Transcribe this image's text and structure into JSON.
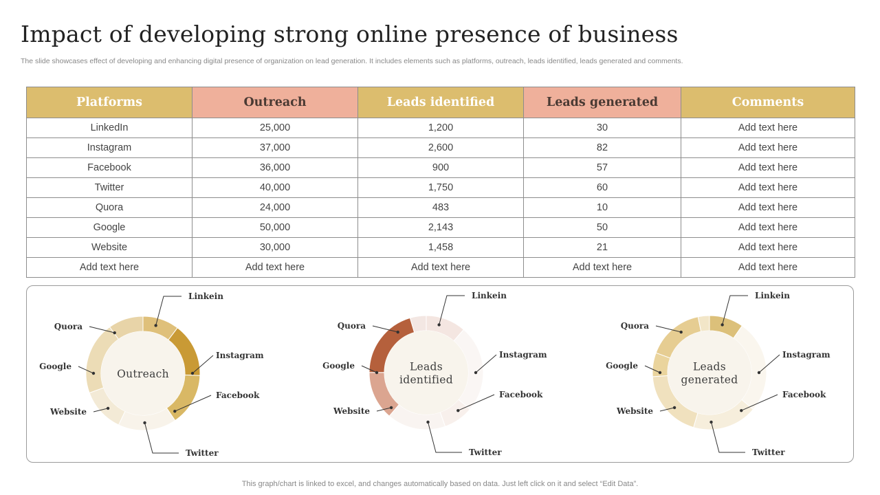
{
  "header": {
    "title": "Impact of developing strong online presence of business",
    "subtitle": "The slide showcases effect of developing and enhancing digital presence of organization on lead generation. It includes elements such as platforms, outreach, leads identified, leads generated and comments."
  },
  "table": {
    "columns": [
      "Platforms",
      "Outreach",
      "Leads identified",
      "Leads generated",
      "Comments"
    ],
    "rows": [
      [
        "LinkedIn",
        "25,000",
        "1,200",
        "30",
        "Add text here"
      ],
      [
        "Instagram",
        "37,000",
        "2,600",
        "82",
        "Add text here"
      ],
      [
        "Facebook",
        "36,000",
        "900",
        "57",
        "Add text here"
      ],
      [
        "Twitter",
        "40,000",
        "1,750",
        "60",
        "Add text here"
      ],
      [
        "Quora",
        "24,000",
        "483",
        "10",
        "Add text here"
      ],
      [
        "Google",
        "50,000",
        "2,143",
        "50",
        "Add text here"
      ],
      [
        "Website",
        "30,000",
        "1,458",
        "21",
        "Add text here"
      ],
      [
        "Add text here",
        "Add text here",
        "Add text here",
        "Add text here",
        "Add text here"
      ]
    ]
  },
  "colors": {
    "gold": "#dcbd6e",
    "salmon": "#efb09b",
    "terracotta": "#b5603c"
  },
  "chart_data": [
    {
      "type": "pie",
      "title": "Outreach",
      "categories": [
        "Linkein",
        "Instagram",
        "Facebook",
        "Twitter",
        "Website",
        "Google",
        "Quora"
      ],
      "values": [
        25000,
        37000,
        36000,
        40000,
        30000,
        50000,
        24000
      ],
      "colors": [
        "#dfc07a",
        "#c99a35",
        "#d9b865",
        "#f8f3ea",
        "#f3ead6",
        "#ecdcb6",
        "#e8d4a8"
      ]
    },
    {
      "type": "pie",
      "title": "Leads identified",
      "categories": [
        "Linkein",
        "Instagram",
        "Facebook",
        "Twitter",
        "Website",
        "Google",
        "Quora"
      ],
      "values": [
        1200,
        2600,
        900,
        1750,
        1458,
        2143,
        483
      ],
      "colors": [
        "#f4e6e1",
        "#faf6f4",
        "#f8f0ec",
        "#f9f4f1",
        "#dba590",
        "#b5603c",
        "#f3e7e3"
      ]
    },
    {
      "type": "pie",
      "title": "Leads generated",
      "categories": [
        "Linkein",
        "Instagram",
        "Facebook",
        "Twitter",
        "Website",
        "Google",
        "Quora"
      ],
      "values": [
        30,
        82,
        57,
        60,
        21,
        50,
        10
      ],
      "colors": [
        "#dcc07a",
        "#faf6ee",
        "#f6eedc",
        "#f0e1be",
        "#ead49d",
        "#e6cd92",
        "#f2e6c8"
      ]
    }
  ],
  "footer": "This graph/chart is linked to excel, and changes automatically based on data. Just left click on it and select “Edit Data”."
}
